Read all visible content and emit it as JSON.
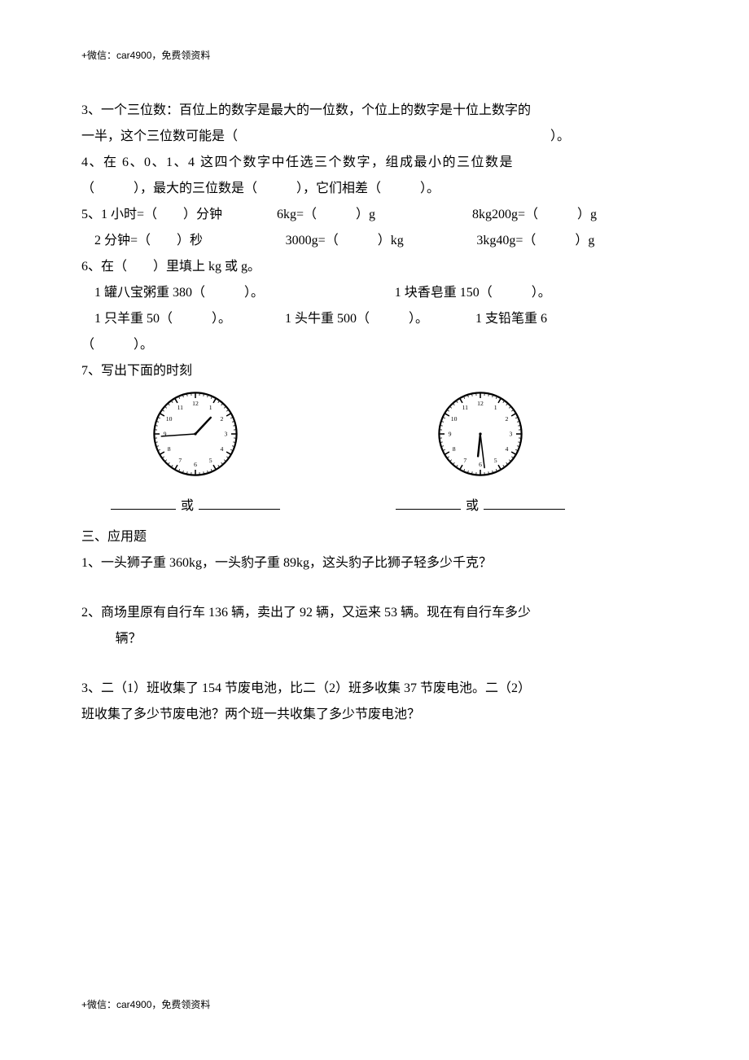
{
  "header": "+微信：car4900，免费领资料",
  "footer": "+微信：car4900，免费领资料",
  "q3_line1": "3、一个三位数：百位上的数字是最大的一位数，个位上的数字是十位上数字的",
  "q3_line2": "一半，这个三位数可能是（　　　　　　　　　　　　　　　　　　　　　　　　）。",
  "q4_line1": "4、在 6、0、1、4 这四个数字中任选三个数字，组成最小的三位数是",
  "q4_line2": "（　　　），最大的三位数是（　　　），它们相差（　　　）。",
  "q5_a": "5、1 小时=（　　）分钟",
  "q5_b": "6kg=（　　　）g",
  "q5_c": "8kg200g=（　　　）g",
  "q5_d": "2 分钟=（　　）秒",
  "q5_e": "3000g=（　　　）kg",
  "q5_f": "3kg40g=（　　　）g",
  "q6_title": "6、在（　　）里填上 kg 或 g。",
  "q6_a": "1 罐八宝粥重 380（　　　）。",
  "q6_b": "1 块香皂重 150（　　　）。",
  "q6_c": "1 只羊重 50（　　　）。",
  "q6_d": "1 头牛重 500（　　　）。",
  "q6_e": "1 支铅笔重 6",
  "q6_f": "（　　　）。",
  "q7_title": "7、写出下面的时刻",
  "or_label": "或",
  "clock1": {
    "hour_angle": 43,
    "minute_angle": -94,
    "hour_len": 25,
    "minute_len": 38
  },
  "clock2": {
    "hour_angle": 186,
    "minute_angle": 173,
    "hour_len": 25,
    "minute_len": 38
  },
  "section3_title": "三、应用题",
  "app_q1": "1、一头狮子重 360kg，一头豹子重 89kg，这头豹子比狮子轻多少千克？",
  "app_q2a": "2、商场里原有自行车 136 辆，卖出了 92 辆，又运来 53 辆。现在有自行车多少",
  "app_q2b": "辆？",
  "app_q3a": "3、二（1）班收集了 154 节废电池，比二（2）班多收集 37 节废电池。二（2）",
  "app_q3b": "班收集了多少节废电池？两个班一共收集了多少节废电池？",
  "colors": {
    "text": "#000000",
    "background": "#ffffff"
  },
  "fonts": {
    "body_family": "SimSun",
    "body_size_pt": 12,
    "note_size_pt": 9
  }
}
